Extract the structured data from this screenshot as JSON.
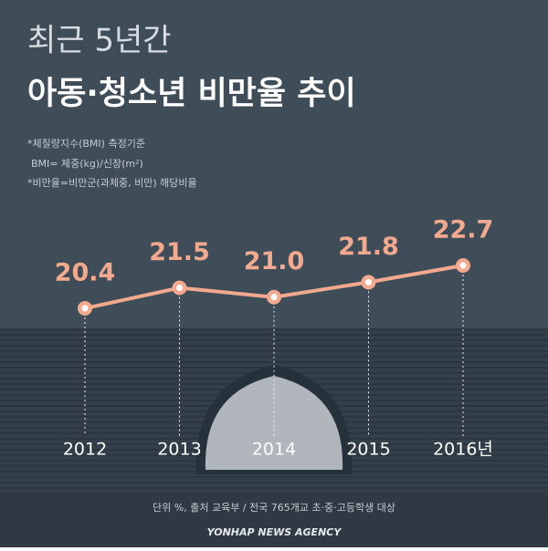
{
  "chart_data": {
    "type": "line",
    "title": "최근 5년간",
    "subtitle": "아동·청소년 비만율 추이",
    "notes": [
      "*체질량지수(BMI) 측정기준",
      "BMI= 체중(kg)/신장(m²)",
      "*비만율=비만군(과체중, 비만) 해당비율"
    ],
    "categories": [
      "2012",
      "2013",
      "2014",
      "2015",
      "2016년"
    ],
    "values": [
      20.4,
      21.5,
      21.0,
      21.8,
      22.7
    ],
    "value_labels": [
      "20.4",
      "21.5",
      "21.0",
      "21.8",
      "22.7"
    ],
    "color": "#f2a98e",
    "source": "단위 %, 출처 교육부 / 전국 765개교 초·중·고등학생 대상",
    "credit": "YONHAP NEWS AGENCY"
  }
}
